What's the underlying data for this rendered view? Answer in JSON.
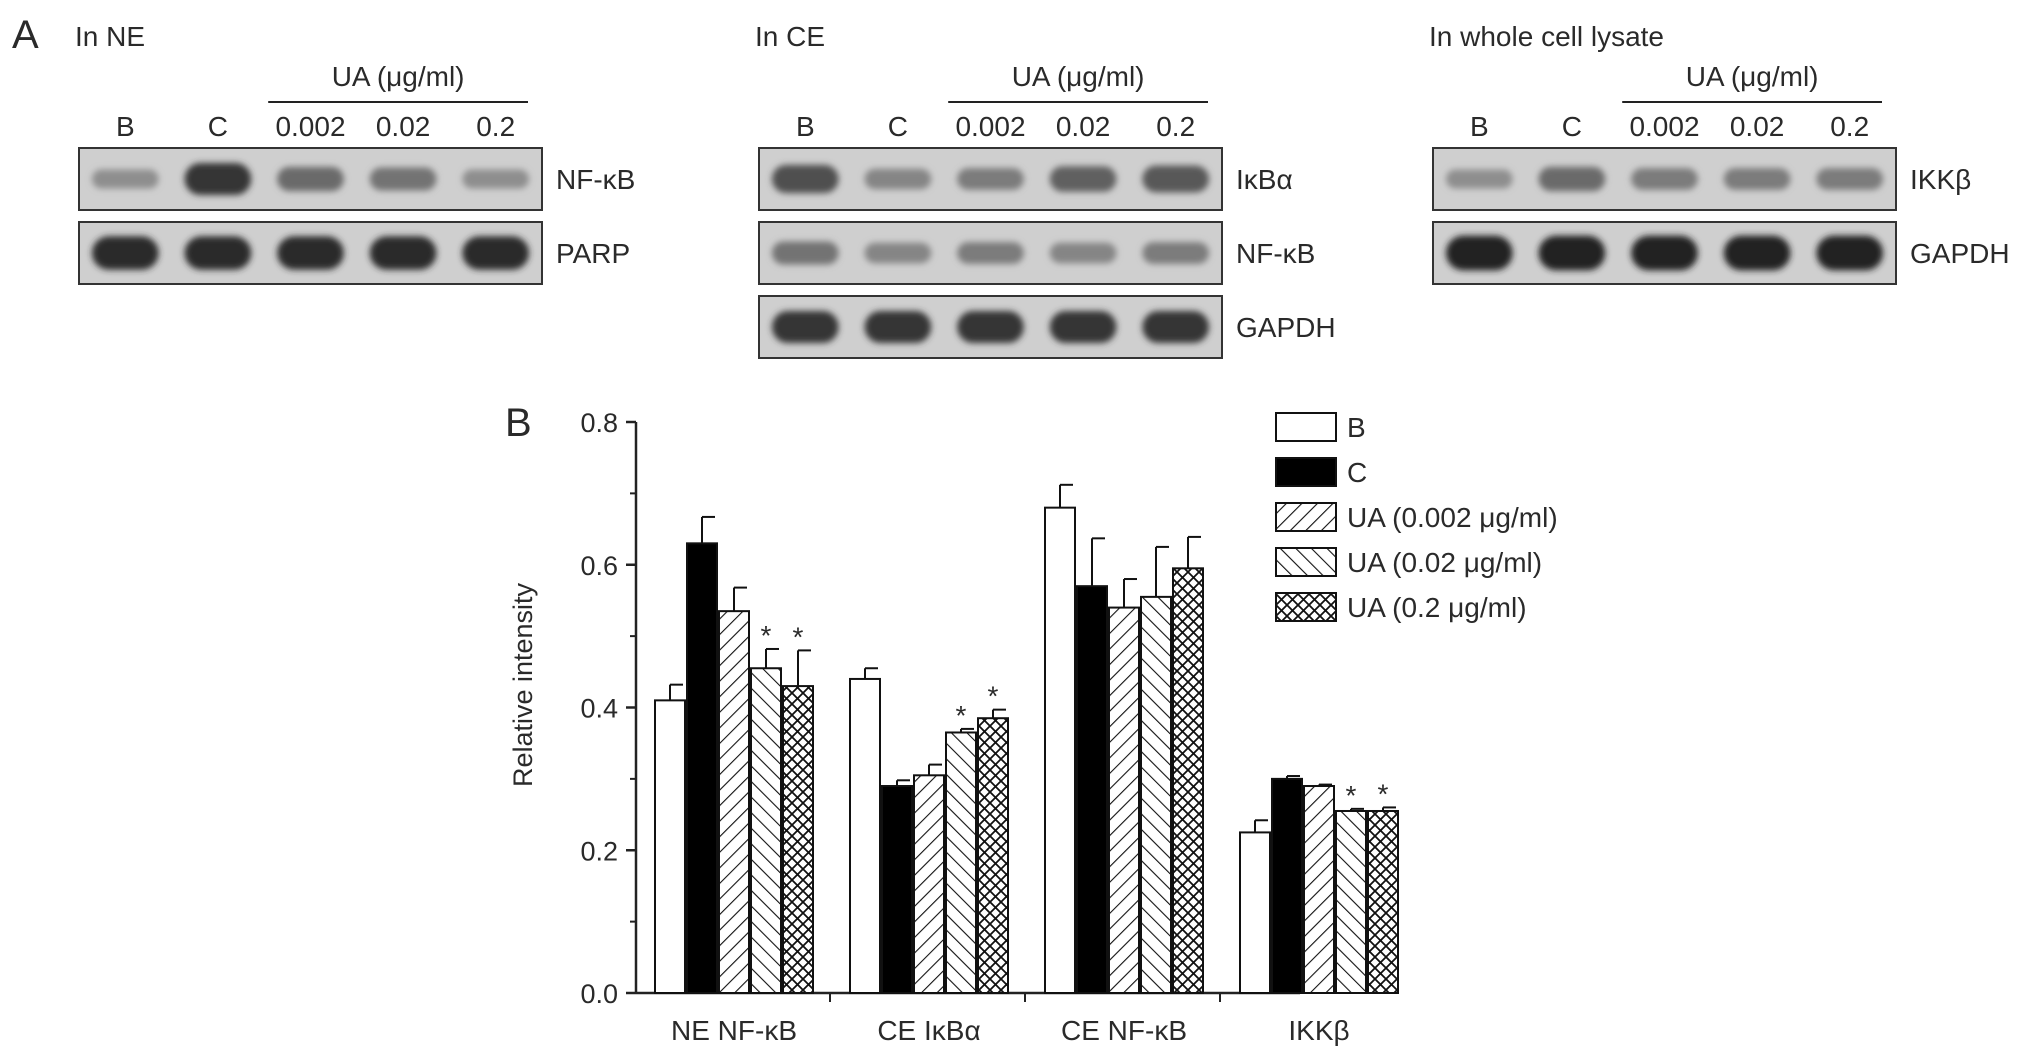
{
  "panel_a": {
    "label": "A",
    "groups": [
      {
        "title": "In NE",
        "treatment_label": "UA (μg/ml)",
        "lanes": [
          "B",
          "C",
          "0.002",
          "0.02",
          "0.2"
        ],
        "blots": [
          {
            "label": "NF-κB",
            "band_intensity": [
              0.35,
              0.85,
              0.55,
              0.5,
              0.35
            ]
          },
          {
            "label": "PARP",
            "band_intensity": [
              0.9,
              0.9,
              0.9,
              0.9,
              0.9
            ]
          }
        ]
      },
      {
        "title": "In CE",
        "treatment_label": "UA (μg/ml)",
        "lanes": [
          "B",
          "C",
          "0.002",
          "0.02",
          "0.2"
        ],
        "blots": [
          {
            "label": "IκBα",
            "band_intensity": [
              0.7,
              0.4,
              0.45,
              0.6,
              0.65
            ]
          },
          {
            "label": "NF-κB",
            "band_intensity": [
              0.5,
              0.4,
              0.45,
              0.4,
              0.45
            ]
          },
          {
            "label": "GAPDH",
            "band_intensity": [
              0.85,
              0.85,
              0.85,
              0.85,
              0.85
            ]
          }
        ]
      },
      {
        "title": "In whole cell lysate",
        "treatment_label": "UA (μg/ml)",
        "lanes": [
          "B",
          "C",
          "0.002",
          "0.02",
          "0.2"
        ],
        "blots": [
          {
            "label": "IKKβ",
            "band_intensity": [
              0.35,
              0.55,
              0.45,
              0.45,
              0.45
            ]
          },
          {
            "label": "GAPDH",
            "band_intensity": [
              0.95,
              0.95,
              0.95,
              0.95,
              0.95
            ]
          }
        ]
      }
    ]
  },
  "chart_data": {
    "panel_label": "B",
    "type": "bar",
    "ylabel": "Relative intensity",
    "ylim": [
      0.0,
      0.8
    ],
    "yticks": [
      "0.0",
      "0.2",
      "0.4",
      "0.6",
      "0.8"
    ],
    "categories": [
      "NE NF-κB",
      "CE IκBα",
      "CE NF-κB",
      "IKKβ"
    ],
    "legend_position": "top-right",
    "series": [
      {
        "name": "B",
        "fill": "white",
        "values": [
          0.41,
          0.44,
          0.68,
          0.225
        ],
        "errors": [
          0.022,
          0.015,
          0.032,
          0.017
        ],
        "significant": [
          false,
          false,
          false,
          false
        ]
      },
      {
        "name": "C",
        "fill": "black",
        "values": [
          0.63,
          0.29,
          0.57,
          0.3
        ],
        "errors": [
          0.037,
          0.008,
          0.067,
          0.004
        ],
        "significant": [
          false,
          false,
          false,
          false
        ]
      },
      {
        "name": "UA (0.002 μg/ml)",
        "fill": "hatch-forward",
        "values": [
          0.535,
          0.305,
          0.54,
          0.29
        ],
        "errors": [
          0.033,
          0.015,
          0.04,
          0.002
        ],
        "significant": [
          false,
          false,
          false,
          false
        ]
      },
      {
        "name": "UA (0.02 μg/ml)",
        "fill": "hatch-back",
        "values": [
          0.455,
          0.365,
          0.555,
          0.255
        ],
        "errors": [
          0.027,
          0.005,
          0.07,
          0.003
        ],
        "significant": [
          true,
          true,
          false,
          true
        ]
      },
      {
        "name": "UA (0.2 μg/ml)",
        "fill": "crosshatch",
        "values": [
          0.43,
          0.385,
          0.595,
          0.255
        ],
        "errors": [
          0.05,
          0.012,
          0.044,
          0.005
        ],
        "significant": [
          true,
          true,
          false,
          true
        ]
      }
    ],
    "significance_marker": "*"
  }
}
